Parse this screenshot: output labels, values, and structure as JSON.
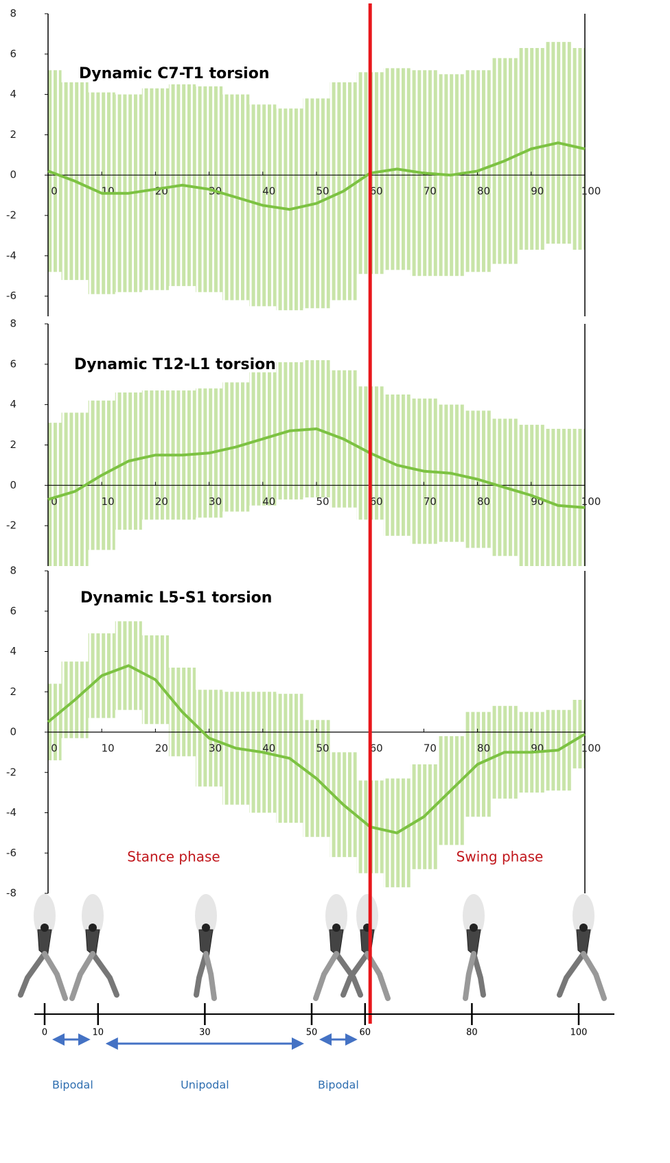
{
  "chart_data": [
    {
      "type": "line",
      "title": "Dynamic C7-T1 torsion",
      "x": [
        0,
        5,
        10,
        15,
        20,
        25,
        30,
        35,
        40,
        45,
        50,
        55,
        60,
        65,
        70,
        75,
        80,
        85,
        90,
        95,
        100
      ],
      "series": [
        {
          "color": "#7cc242",
          "error_color": "#c8e4a8",
          "values": [
            0.2,
            -0.3,
            -0.9,
            -0.9,
            -0.7,
            -0.5,
            -0.7,
            -1.1,
            -1.5,
            -1.7,
            -1.4,
            -0.8,
            0.1,
            0.3,
            0.1,
            0.0,
            0.2,
            0.7,
            1.3,
            1.6,
            1.3
          ],
          "errors": [
            5.0,
            4.9,
            5.0,
            4.9,
            5.0,
            5.0,
            5.1,
            5.1,
            5.0,
            5.0,
            5.2,
            5.4,
            5.0,
            5.0,
            5.1,
            5.0,
            5.0,
            5.1,
            5.0,
            5.0,
            5.0
          ]
        }
      ],
      "xlim": [
        0,
        100
      ],
      "xticks": [
        0,
        10,
        20,
        30,
        40,
        50,
        60,
        70,
        80,
        90,
        100
      ],
      "ylim": [
        -7,
        8
      ],
      "yticks": [
        -6,
        -4,
        -2,
        0,
        2,
        4,
        6,
        8
      ]
    },
    {
      "type": "line",
      "title": "Dynamic T12-L1 torsion",
      "x": [
        0,
        5,
        10,
        15,
        20,
        25,
        30,
        35,
        40,
        45,
        50,
        55,
        60,
        65,
        70,
        75,
        80,
        85,
        90,
        95,
        100
      ],
      "series": [
        {
          "color": "#7cc242",
          "error_color": "#c8e4a8",
          "values": [
            -0.7,
            -0.3,
            0.5,
            1.2,
            1.5,
            1.5,
            1.6,
            1.9,
            2.3,
            2.7,
            2.8,
            2.3,
            1.6,
            1.0,
            0.7,
            0.6,
            0.3,
            -0.1,
            -0.5,
            -1.0,
            -1.1
          ],
          "errors": [
            3.8,
            3.9,
            3.7,
            3.4,
            3.2,
            3.2,
            3.2,
            3.2,
            3.3,
            3.4,
            3.4,
            3.4,
            3.3,
            3.5,
            3.6,
            3.4,
            3.4,
            3.4,
            3.5,
            3.8,
            3.9
          ]
        }
      ],
      "xlim": [
        0,
        100
      ],
      "xticks": [
        0,
        10,
        20,
        30,
        40,
        50,
        60,
        70,
        80,
        90,
        100
      ],
      "ylim": [
        -4,
        8
      ],
      "yticks": [
        -2,
        0,
        2,
        4,
        6,
        8
      ]
    },
    {
      "type": "line",
      "title": "Dynamic L5-S1 torsion",
      "x": [
        0,
        5,
        10,
        15,
        20,
        25,
        30,
        35,
        40,
        45,
        50,
        55,
        60,
        65,
        70,
        75,
        80,
        85,
        90,
        95,
        100
      ],
      "series": [
        {
          "color": "#7cc242",
          "error_color": "#c8e4a8",
          "values": [
            0.5,
            1.6,
            2.8,
            3.3,
            2.6,
            1.0,
            -0.3,
            -0.8,
            -1.0,
            -1.3,
            -2.3,
            -3.6,
            -4.7,
            -5.0,
            -4.2,
            -2.9,
            -1.6,
            -1.0,
            -1.0,
            -0.9,
            -0.1
          ],
          "errors": [
            1.9,
            1.9,
            2.1,
            2.2,
            2.2,
            2.2,
            2.4,
            2.8,
            3.0,
            3.2,
            2.9,
            2.6,
            2.3,
            2.7,
            2.6,
            2.7,
            2.6,
            2.3,
            2.0,
            2.0,
            1.7
          ]
        }
      ],
      "xlim": [
        0,
        100
      ],
      "xticks": [
        0,
        10,
        20,
        30,
        40,
        50,
        60,
        70,
        80,
        90,
        100
      ],
      "ylim": [
        -8,
        8
      ],
      "yticks": [
        -8,
        -6,
        -4,
        -2,
        0,
        2,
        4,
        6,
        8
      ],
      "annotations": [
        "Stance phase",
        "Swing phase"
      ]
    }
  ],
  "phase_marker": {
    "x": 60,
    "color": "#e8161b"
  },
  "gait_timeline": {
    "ticks": [
      0,
      10,
      30,
      50,
      60,
      80,
      100
    ],
    "phases": [
      {
        "label": "Bipodal",
        "from": 0,
        "to": 10
      },
      {
        "label": "Unipodal",
        "from": 10,
        "to": 50
      },
      {
        "label": "Bipodal",
        "from": 50,
        "to": 60
      }
    ]
  }
}
